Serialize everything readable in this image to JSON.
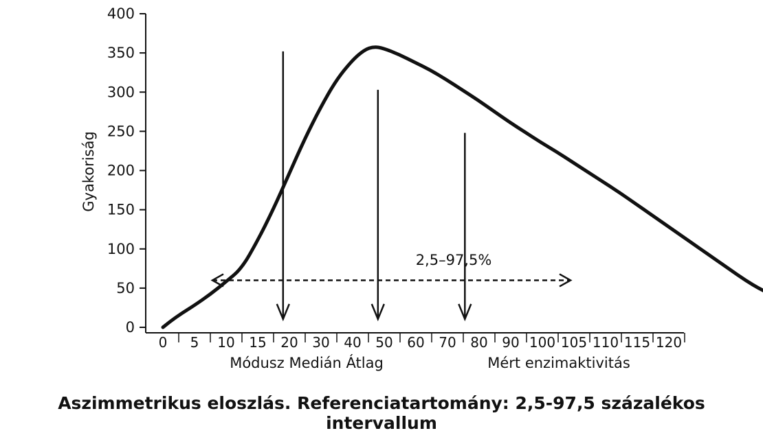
{
  "chart_data": {
    "type": "line",
    "ylabel": "Gyakoriság",
    "ylim": [
      0,
      400
    ],
    "y_ticks": [
      0,
      50,
      100,
      150,
      200,
      250,
      300,
      350,
      400
    ],
    "x_tick_labels": [
      "0",
      "5",
      "10",
      "15",
      "20",
      "30",
      "40",
      "50",
      "60",
      "70",
      "80",
      "90",
      "100",
      "105",
      "110",
      "115",
      "120"
    ],
    "x_text_labels": [
      "Módusz Medián Átlag",
      "Mért enzimaktivitás"
    ],
    "series": [
      {
        "curve_points": [
          [
            0,
            0
          ],
          [
            0.5,
            8
          ],
          [
            1.2,
            18
          ],
          [
            2,
            28
          ],
          [
            3,
            42
          ],
          [
            4,
            58
          ],
          [
            5,
            75
          ],
          [
            6,
            110
          ],
          [
            7,
            150
          ],
          [
            8,
            195
          ],
          [
            9,
            240
          ],
          [
            10,
            280
          ],
          [
            11,
            315
          ],
          [
            12,
            340
          ],
          [
            12.8,
            354
          ],
          [
            13.4,
            358
          ],
          [
            14,
            356
          ],
          [
            15,
            348
          ],
          [
            16,
            338
          ],
          [
            17,
            328
          ],
          [
            18,
            316
          ],
          [
            19,
            303
          ],
          [
            20,
            290
          ],
          [
            21,
            276
          ],
          [
            22,
            262
          ],
          [
            23,
            249
          ],
          [
            24,
            236
          ],
          [
            25,
            224
          ],
          [
            26,
            211
          ],
          [
            27,
            198
          ],
          [
            28,
            185
          ],
          [
            29,
            172
          ],
          [
            30,
            158
          ],
          [
            31,
            144
          ],
          [
            32,
            130
          ],
          [
            33,
            116
          ],
          [
            34,
            102
          ],
          [
            35,
            88
          ],
          [
            36,
            74
          ],
          [
            37,
            60
          ],
          [
            38,
            48
          ],
          [
            39,
            39
          ],
          [
            40,
            34
          ],
          [
            41,
            30
          ],
          [
            42,
            27
          ],
          [
            43,
            24
          ]
        ]
      }
    ],
    "annotations": {
      "markers": [
        {
          "x_tick_index": 3.8,
          "y_top": 352
        },
        {
          "x_tick_index": 6.8,
          "y_top": 303
        },
        {
          "x_tick_index": 9.55,
          "y_top": 248
        }
      ],
      "interval": {
        "label": "2,5–97,5%",
        "y": 60,
        "x_from_tick_index": 1.5,
        "x_to_tick_index": 13.0
      }
    }
  },
  "caption": "Aszimmetrikus eloszlás. Referenciatartomány: 2,5-97,5 százalékos intervallum",
  "colors": {
    "curve": "#111111",
    "axis": "#111111",
    "text": "#111111"
  }
}
